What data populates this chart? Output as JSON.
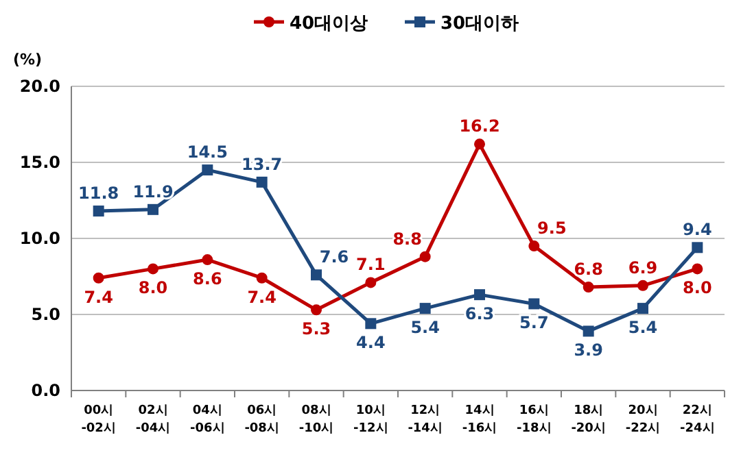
{
  "chart_data": {
    "type": "line",
    "ylabel": "(%)",
    "categories": [
      "00시\n-02시",
      "02시\n-04시",
      "04시\n-06시",
      "06시\n-08시",
      "08시\n-10시",
      "10시\n-12시",
      "12시\n-14시",
      "14시\n-16시",
      "16시\n-18시",
      "18시\n-20시",
      "20시\n-22시",
      "22시\n-24시"
    ],
    "series": [
      {
        "name": "40대이상",
        "color": "#c00000",
        "marker": "circle",
        "values": [
          7.4,
          8.0,
          8.6,
          7.4,
          5.3,
          7.1,
          8.8,
          16.2,
          9.5,
          6.8,
          6.9,
          8.0
        ],
        "value_labels": [
          "7.4",
          "8.0",
          "8.6",
          "7.4",
          "5.3",
          "7.1",
          "8.8",
          "16.2",
          "9.5",
          "6.8",
          "6.9",
          "8.0"
        ]
      },
      {
        "name": "30대이하",
        "color": "#1f497d",
        "marker": "square",
        "values": [
          11.8,
          11.9,
          14.5,
          13.7,
          7.6,
          4.4,
          5.4,
          6.3,
          5.7,
          3.9,
          5.4,
          9.4
        ],
        "value_labels": [
          "11.8",
          "11.9",
          "14.5",
          "13.7",
          "7.6",
          "4.4",
          "5.4",
          "6.3",
          "5.7",
          "3.9",
          "5.4",
          "9.4"
        ]
      }
    ],
    "ylim": [
      0,
      20
    ],
    "yticks": [
      {
        "value": 0,
        "label": "0.0"
      },
      {
        "value": 5,
        "label": "5.0"
      },
      {
        "value": 10,
        "label": "10.0"
      },
      {
        "value": 15,
        "label": "15.0"
      },
      {
        "value": 20,
        "label": "20.0"
      }
    ],
    "grid": "y",
    "legend": "top",
    "line_style": "solid"
  }
}
